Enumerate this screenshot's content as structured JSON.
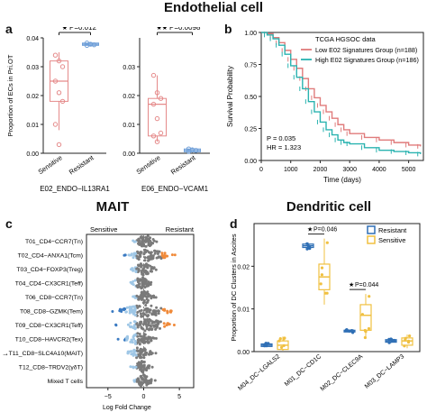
{
  "titles": {
    "endothelial": "Endothelial cell",
    "mait": "MAIT",
    "dendritic": "Dendritic cell"
  },
  "panel_labels": [
    "a",
    "b",
    "c",
    "d"
  ],
  "colors": {
    "sensitive_red": "#e58a8a",
    "resistant_blue": "#6f9fd8",
    "km_low": "#e07b7b",
    "km_high": "#2ab3b0",
    "dc_resistant": "#2f6fb5",
    "dc_sensitive": "#f0c040",
    "beeswarm_grey": "#7a7a7a",
    "beeswarm_blue": "#3a7ac2",
    "beeswarm_lightblue": "#9fc7e6",
    "beeswarm_orange": "#f08a3a"
  },
  "chart_data": [
    {
      "id": "a1",
      "type": "box",
      "ylabel": "Proportion of ECs in Pri.OT",
      "xlabel": "E02_ENDO−IL13RA1",
      "categories": [
        "Sensitive",
        "Resistant"
      ],
      "ylim": [
        0.0,
        0.04
      ],
      "yticks": [
        "0.00",
        "0.01",
        "0.02",
        "0.03",
        "0.04"
      ],
      "annotation": "P=0.012",
      "annotation_stars": "★",
      "boxes": [
        {
          "name": "Sensitive",
          "q1": 0.018,
          "median": 0.025,
          "q3": 0.032,
          "whisker_low": 0.008,
          "whisker_high": 0.035
        },
        {
          "name": "Resistant",
          "q1": 0.0374,
          "median": 0.0378,
          "q3": 0.0382,
          "whisker_low": 0.0372,
          "whisker_high": 0.0384
        }
      ],
      "points": [
        {
          "group": "Sensitive",
          "values": [
            0.034,
            0.032,
            0.03,
            0.025,
            0.021,
            0.018,
            0.01,
            0.003
          ]
        },
        {
          "group": "Resistant",
          "values": [
            0.0382,
            0.0378,
            0.0376,
            0.0374
          ]
        }
      ]
    },
    {
      "id": "a2",
      "type": "box",
      "xlabel": "E06_ENDO−VCAM1",
      "categories": [
        "Sensitive",
        "Resistant"
      ],
      "ylim": [
        0.0,
        0.04
      ],
      "yticks": [
        "0.00",
        "0.01",
        "0.02",
        "0.03"
      ],
      "annotation": "P=0.0098",
      "annotation_stars": "★★",
      "boxes": [
        {
          "name": "Sensitive",
          "q1": 0.006,
          "median": 0.017,
          "q3": 0.019,
          "whisker_low": 0.004,
          "whisker_high": 0.027
        },
        {
          "name": "Resistant",
          "q1": 0.0005,
          "median": 0.001,
          "q3": 0.0015,
          "whisker_low": 0.0002,
          "whisker_high": 0.002
        }
      ],
      "points": [
        {
          "group": "Sensitive",
          "values": [
            0.027,
            0.021,
            0.019,
            0.017,
            0.012,
            0.007,
            0.006,
            0.004
          ]
        },
        {
          "group": "Resistant",
          "values": [
            0.0015,
            0.0012,
            0.001,
            0.0006
          ]
        }
      ]
    },
    {
      "id": "b",
      "type": "line",
      "legend_title": "TCGA HGSOC data",
      "legend_position": "top-right",
      "xlabel": "Time (days)",
      "ylabel": "Survival Probability",
      "xlim": [
        0,
        5500
      ],
      "ylim": [
        0,
        1.0
      ],
      "xticks": [
        "0",
        "1000",
        "2000",
        "3000",
        "4000",
        "5000"
      ],
      "yticks": [
        "0.00",
        "0.25",
        "0.50",
        "0.75",
        "1.00"
      ],
      "annotations": [
        "P = 0.035",
        "HR = 1.323"
      ],
      "series": [
        {
          "name": "Low E02 Signatures Group (n=188)",
          "x": [
            0,
            200,
            400,
            600,
            800,
            1000,
            1200,
            1400,
            1600,
            1800,
            2000,
            2200,
            2400,
            2600,
            2800,
            3000,
            3500,
            4000,
            4500,
            5000,
            5400
          ],
          "y": [
            1.0,
            0.99,
            0.96,
            0.92,
            0.86,
            0.79,
            0.72,
            0.64,
            0.56,
            0.49,
            0.43,
            0.38,
            0.33,
            0.28,
            0.24,
            0.21,
            0.18,
            0.16,
            0.14,
            0.12,
            0.11
          ]
        },
        {
          "name": "High E02 Signatures Group (n=186)",
          "x": [
            0,
            200,
            400,
            600,
            800,
            1000,
            1200,
            1400,
            1600,
            1800,
            2000,
            2200,
            2400,
            2600,
            2800,
            3000,
            3500,
            4000,
            4500,
            5000,
            5400
          ],
          "y": [
            1.0,
            0.98,
            0.95,
            0.9,
            0.83,
            0.74,
            0.65,
            0.56,
            0.46,
            0.38,
            0.3,
            0.24,
            0.2,
            0.16,
            0.14,
            0.13,
            0.1,
            0.08,
            0.07,
            0.06,
            0.05
          ]
        }
      ]
    },
    {
      "id": "c",
      "type": "scatter",
      "xlabel": "Log Fold Change",
      "xlim": [
        -8,
        7
      ],
      "xticks": [
        "−5",
        "0",
        "5"
      ],
      "xtick_values": [
        -5,
        0,
        5
      ],
      "left_label": "Sensitive",
      "right_label": "Resistant",
      "highlighted_row": "T11_CD8−SLC4A10(MAIT)",
      "rows": [
        {
          "label": "T01_CD4−CCR7(Tn)",
          "spread": 2.2,
          "center": 0.3
        },
        {
          "label": "T02_CD4−ANXA1(Tcm)",
          "spread": 4.5,
          "center": 0.8
        },
        {
          "label": "T03_CD4−FOXP3(Treg)",
          "spread": 2.5,
          "center": 0.0
        },
        {
          "label": "T04_CD4−CX3CR1(Teff)",
          "spread": 2.0,
          "center": -0.3
        },
        {
          "label": "T06_CD8−CCR7(Tn)",
          "spread": 2.0,
          "center": 0.2
        },
        {
          "label": "T08_CD8−GZMK(Tem)",
          "spread": 6.0,
          "center": 0.0
        },
        {
          "label": "T09_CD8−CX3CR1(Teff)",
          "spread": 5.0,
          "center": 0.5
        },
        {
          "label": "T10_CD8−HAVCR2(Tex)",
          "spread": 3.5,
          "center": -0.5
        },
        {
          "label": "T11_CD8−SLC4A10(MAIT)",
          "spread": 2.5,
          "center": -0.5
        },
        {
          "label": "T12_CD8−TRDV2(γδT)",
          "spread": 1.8,
          "center": -0.2
        },
        {
          "label": "Mixed T cells",
          "spread": 2.0,
          "center": 0.0
        }
      ]
    },
    {
      "id": "d",
      "type": "box",
      "ylabel": "Proportion of DC Clusters in Ascites",
      "categories": [
        "M04_DC−LGALS2",
        "M01_DC−CD1C",
        "M02_DC−CLEC9A",
        "M03_DC−LAMP3"
      ],
      "ylim": [
        0.0,
        0.03
      ],
      "yticks": [
        "0.00",
        "0.01",
        "0.02"
      ],
      "legend_position": "top-right",
      "annotations": [
        {
          "category": "M01_DC−CD1C",
          "text": "P=0.046",
          "stars": "★"
        },
        {
          "category": "M02_DC−CLEC9A",
          "text": "P=0.044",
          "stars": "★"
        }
      ],
      "series": [
        {
          "name": "Resistant",
          "boxes": [
            {
              "q1": 0.0012,
              "median": 0.0015,
              "q3": 0.0018,
              "whisker_low": 0.001,
              "whisker_high": 0.002
            },
            {
              "q1": 0.0244,
              "median": 0.0248,
              "q3": 0.0252,
              "whisker_low": 0.024,
              "whisker_high": 0.0256
            },
            {
              "q1": 0.0046,
              "median": 0.0048,
              "q3": 0.005,
              "whisker_low": 0.0044,
              "whisker_high": 0.0052
            },
            {
              "q1": 0.0022,
              "median": 0.0025,
              "q3": 0.0028,
              "whisker_low": 0.002,
              "whisker_high": 0.003
            }
          ]
        },
        {
          "name": "Sensitive",
          "boxes": [
            {
              "q1": 0.0005,
              "median": 0.0015,
              "q3": 0.0025,
              "whisker_low": 0.0002,
              "whisker_high": 0.0035
            },
            {
              "q1": 0.0145,
              "median": 0.0175,
              "q3": 0.0205,
              "whisker_low": 0.011,
              "whisker_high": 0.0265
            },
            {
              "q1": 0.005,
              "median": 0.0085,
              "q3": 0.011,
              "whisker_low": 0.003,
              "whisker_high": 0.0135
            },
            {
              "q1": 0.0015,
              "median": 0.0025,
              "q3": 0.0032,
              "whisker_low": 0.0008,
              "whisker_high": 0.004
            }
          ]
        }
      ]
    }
  ]
}
